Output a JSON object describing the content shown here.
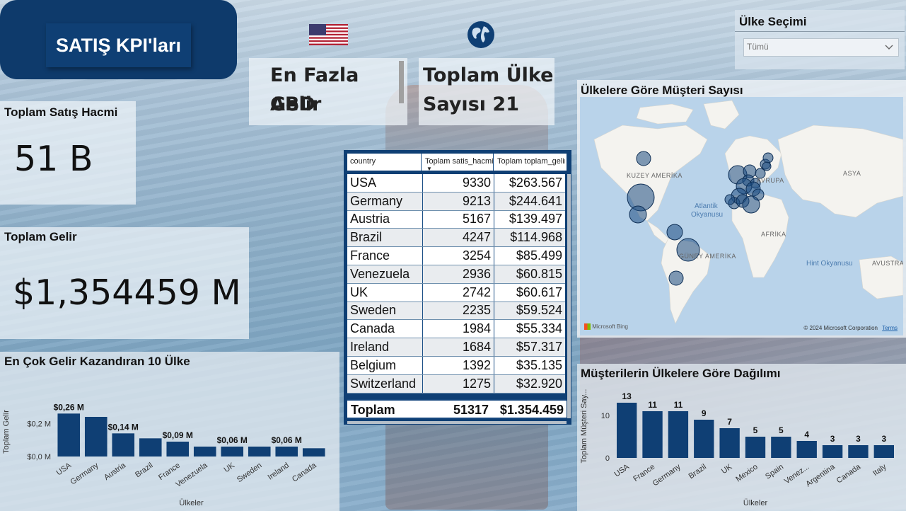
{
  "header": {
    "title": "SATIŞ KPI'ları"
  },
  "filter": {
    "label": "Ülke Seçimi",
    "selected": "Tümü"
  },
  "kpi_volume": {
    "label": "Toplam Satış Hacmi",
    "value": "51 B"
  },
  "kpi_revenue": {
    "label": "Toplam Gelir",
    "value": "$1,354459 M"
  },
  "card_top_revenue": {
    "line1": "En Fazla Gelir",
    "line2": "ABD"
  },
  "card_country_count": {
    "line1": "Toplam Ülke",
    "line2": "Sayısı 21"
  },
  "icons": {
    "flag": "usa-flag-icon",
    "globe": "globe-icon"
  },
  "colors": {
    "bar": "#0f3f74",
    "header": "#0e3a6b",
    "bubble": "#1a4a80"
  },
  "table": {
    "headers": [
      "country",
      "Toplam satis_hacmi",
      "Toplam toplam_gelir"
    ],
    "rows": [
      [
        "USA",
        "9330",
        "$263.567"
      ],
      [
        "Germany",
        "9213",
        "$244.641"
      ],
      [
        "Austria",
        "5167",
        "$139.497"
      ],
      [
        "Brazil",
        "4247",
        "$114.968"
      ],
      [
        "France",
        "3254",
        "$85.499"
      ],
      [
        "Venezuela",
        "2936",
        "$60.815"
      ],
      [
        "UK",
        "2742",
        "$60.617"
      ],
      [
        "Sweden",
        "2235",
        "$59.524"
      ],
      [
        "Canada",
        "1984",
        "$55.334"
      ],
      [
        "Ireland",
        "1684",
        "$57.317"
      ],
      [
        "Belgium",
        "1392",
        "$35.135"
      ],
      [
        "Switzerland",
        "1275",
        "$32.920"
      ]
    ],
    "total": [
      "Toplam",
      "51317",
      "$1.354.459"
    ]
  },
  "map": {
    "title": "Ülkelere Göre Müşteri Sayısı",
    "labels": [
      "KUZEY AMERİKA",
      "AVRUPA",
      "ASYA",
      "Atlantik",
      "Okyanusu",
      "AFRİKA",
      "GÜNEY AMERİKA",
      "Hint Okyanusu",
      "AVUSTRA"
    ],
    "attribution": "© 2024 Microsoft Corporation",
    "terms": "Terms",
    "bing": "Microsoft Bing"
  },
  "chart_revenue": {
    "title": "En Çok Gelir Kazandıran 10 Ülke",
    "tick_labels": [
      "$0,2 M",
      "$0,0 M"
    ],
    "data_labels": [
      "$0,26 M",
      "$0,14 M",
      "$0,09 M",
      "$0,06 M",
      "$0,06 M"
    ]
  },
  "chart_customers": {
    "title": "Müşterilerin Ülkelere Göre Dağılımı",
    "tick_labels": [
      "10",
      "0"
    ]
  },
  "chart_data": [
    {
      "type": "bar",
      "title": "En Çok Gelir Kazandıran 10 Ülke",
      "xlabel": "Ülkeler",
      "ylabel": "Toplam Gelir",
      "categories": [
        "USA",
        "Germany",
        "Austria",
        "Brazil",
        "France",
        "Venezuela",
        "UK",
        "Sweden",
        "Ireland",
        "Canada"
      ],
      "values": [
        0.26,
        0.24,
        0.14,
        0.11,
        0.09,
        0.06,
        0.06,
        0.06,
        0.06,
        0.05
      ],
      "ylim": [
        0,
        0.3
      ]
    },
    {
      "type": "bar",
      "title": "Müşterilerin Ülkelere Göre Dağılımı",
      "xlabel": "Ülkeler",
      "ylabel": "Toplam Müşteri Say...",
      "categories": [
        "USA",
        "France",
        "Germany",
        "Brazil",
        "UK",
        "Mexico",
        "Spain",
        "Venez...",
        "Argentina",
        "Canada",
        "Italy"
      ],
      "values": [
        13,
        11,
        11,
        9,
        7,
        5,
        5,
        4,
        3,
        3,
        3
      ],
      "ylim": [
        0,
        15
      ]
    }
  ]
}
